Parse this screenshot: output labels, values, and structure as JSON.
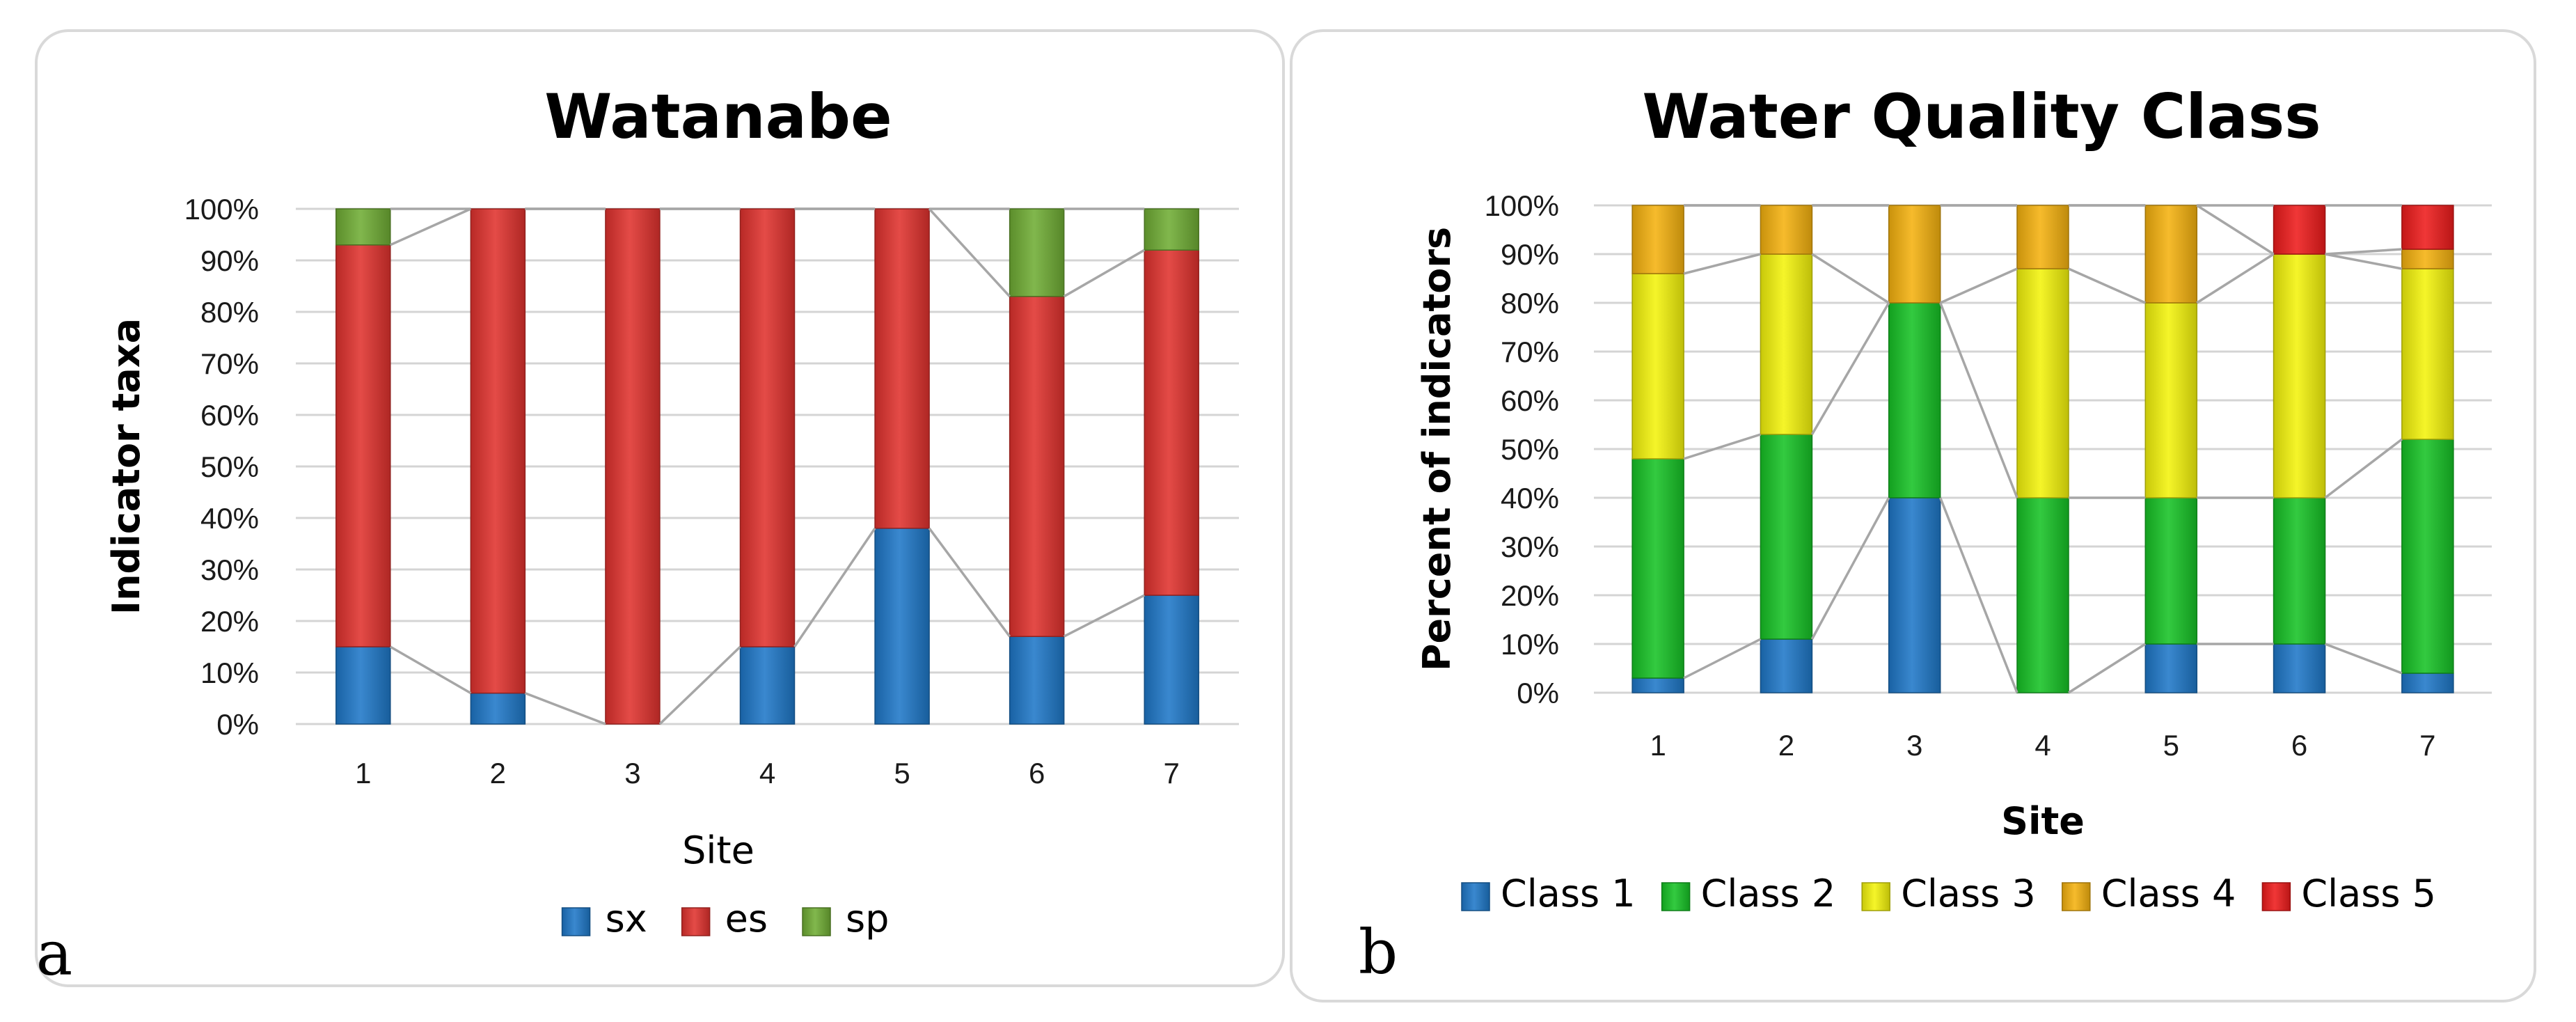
{
  "panels": [
    {
      "letter": "a",
      "chart_data": {
        "type": "bar",
        "stacked": true,
        "percent_stacked": true,
        "title": "Watanabe",
        "xlabel": "Site",
        "ylabel": "Indicator taxa",
        "categories": [
          "1",
          "2",
          "3",
          "4",
          "5",
          "6",
          "7"
        ],
        "y_ticks": [
          "0%",
          "10%",
          "20%",
          "30%",
          "40%",
          "50%",
          "60%",
          "70%",
          "80%",
          "90%",
          "100%"
        ],
        "ylim": [
          0,
          100
        ],
        "grid": true,
        "series_lines": true,
        "legend_position": "bottom",
        "series": [
          {
            "name": "sx",
            "values": [
              15,
              6,
              0,
              15,
              38,
              17,
              25
            ],
            "color": "#1f78c8"
          },
          {
            "name": "es",
            "values": [
              78,
              94,
              100,
              85,
              62,
              66,
              67
            ],
            "color": "#e0322e"
          },
          {
            "name": "sp",
            "values": [
              7,
              0,
              0,
              0,
              0,
              17,
              8
            ],
            "color": "#70ad35"
          }
        ]
      }
    },
    {
      "letter": "b",
      "chart_data": {
        "type": "bar",
        "stacked": true,
        "percent_stacked": true,
        "title": "Water Quality Class",
        "xlabel": "Site",
        "ylabel": "Percent of indicators",
        "categories": [
          "1",
          "2",
          "3",
          "4",
          "5",
          "6",
          "7"
        ],
        "y_ticks": [
          "0%",
          "10%",
          "20%",
          "30%",
          "40%",
          "50%",
          "60%",
          "70%",
          "80%",
          "90%",
          "100%"
        ],
        "ylim": [
          0,
          100
        ],
        "grid": true,
        "series_lines": true,
        "legend_position": "bottom",
        "series": [
          {
            "name": "Class 1",
            "values": [
              3,
              11,
              40,
              0,
              10,
              10,
              4
            ],
            "color": "#1f78c8"
          },
          {
            "name": "Class 2",
            "values": [
              45,
              42,
              40,
              40,
              30,
              30,
              48
            ],
            "color": "#17c326"
          },
          {
            "name": "Class 3",
            "values": [
              38,
              37,
              0,
              47,
              40,
              50,
              35
            ],
            "color": "#f4f40c"
          },
          {
            "name": "Class 4",
            "values": [
              14,
              10,
              20,
              13,
              20,
              0,
              4
            ],
            "color": "#f5b20f"
          },
          {
            "name": "Class 5",
            "values": [
              0,
              0,
              0,
              0,
              0,
              10,
              9
            ],
            "color": "#ee1c1c"
          }
        ]
      }
    }
  ]
}
